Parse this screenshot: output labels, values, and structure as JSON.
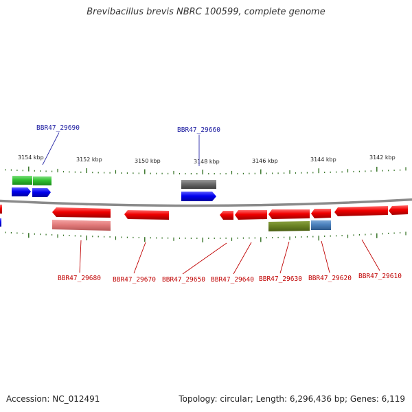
{
  "title": "Brevibacillus brevis NBRC 100599, complete genome",
  "footer": {
    "accession": "Accession: NC_012491",
    "summary": "Topology: circular; Length: 6,296,436 bp; Genes: 6,119"
  },
  "scale_labels": [
    "3154 kbp",
    "3152 kbp",
    "3150 kbp",
    "3148 kbp",
    "3146 kbp",
    "3144 kbp",
    "3142 kbp"
  ],
  "gene_labels": {
    "top": [
      "BBR47_29690",
      "BBR47_29660"
    ],
    "bottom": [
      "BBR47_29680",
      "BBR47_29670",
      "BBR47_29650",
      "BBR47_29640",
      "BBR47_29630",
      "BBR47_29620",
      "BBR47_29610"
    ]
  },
  "colors": {
    "forward_gene": "#0000ee",
    "reverse_gene": "#ee0000",
    "top_label": "#1a1aa0",
    "bottom_label": "#c00000",
    "tick": "#2e6e1e",
    "backbone": "#808080"
  }
}
